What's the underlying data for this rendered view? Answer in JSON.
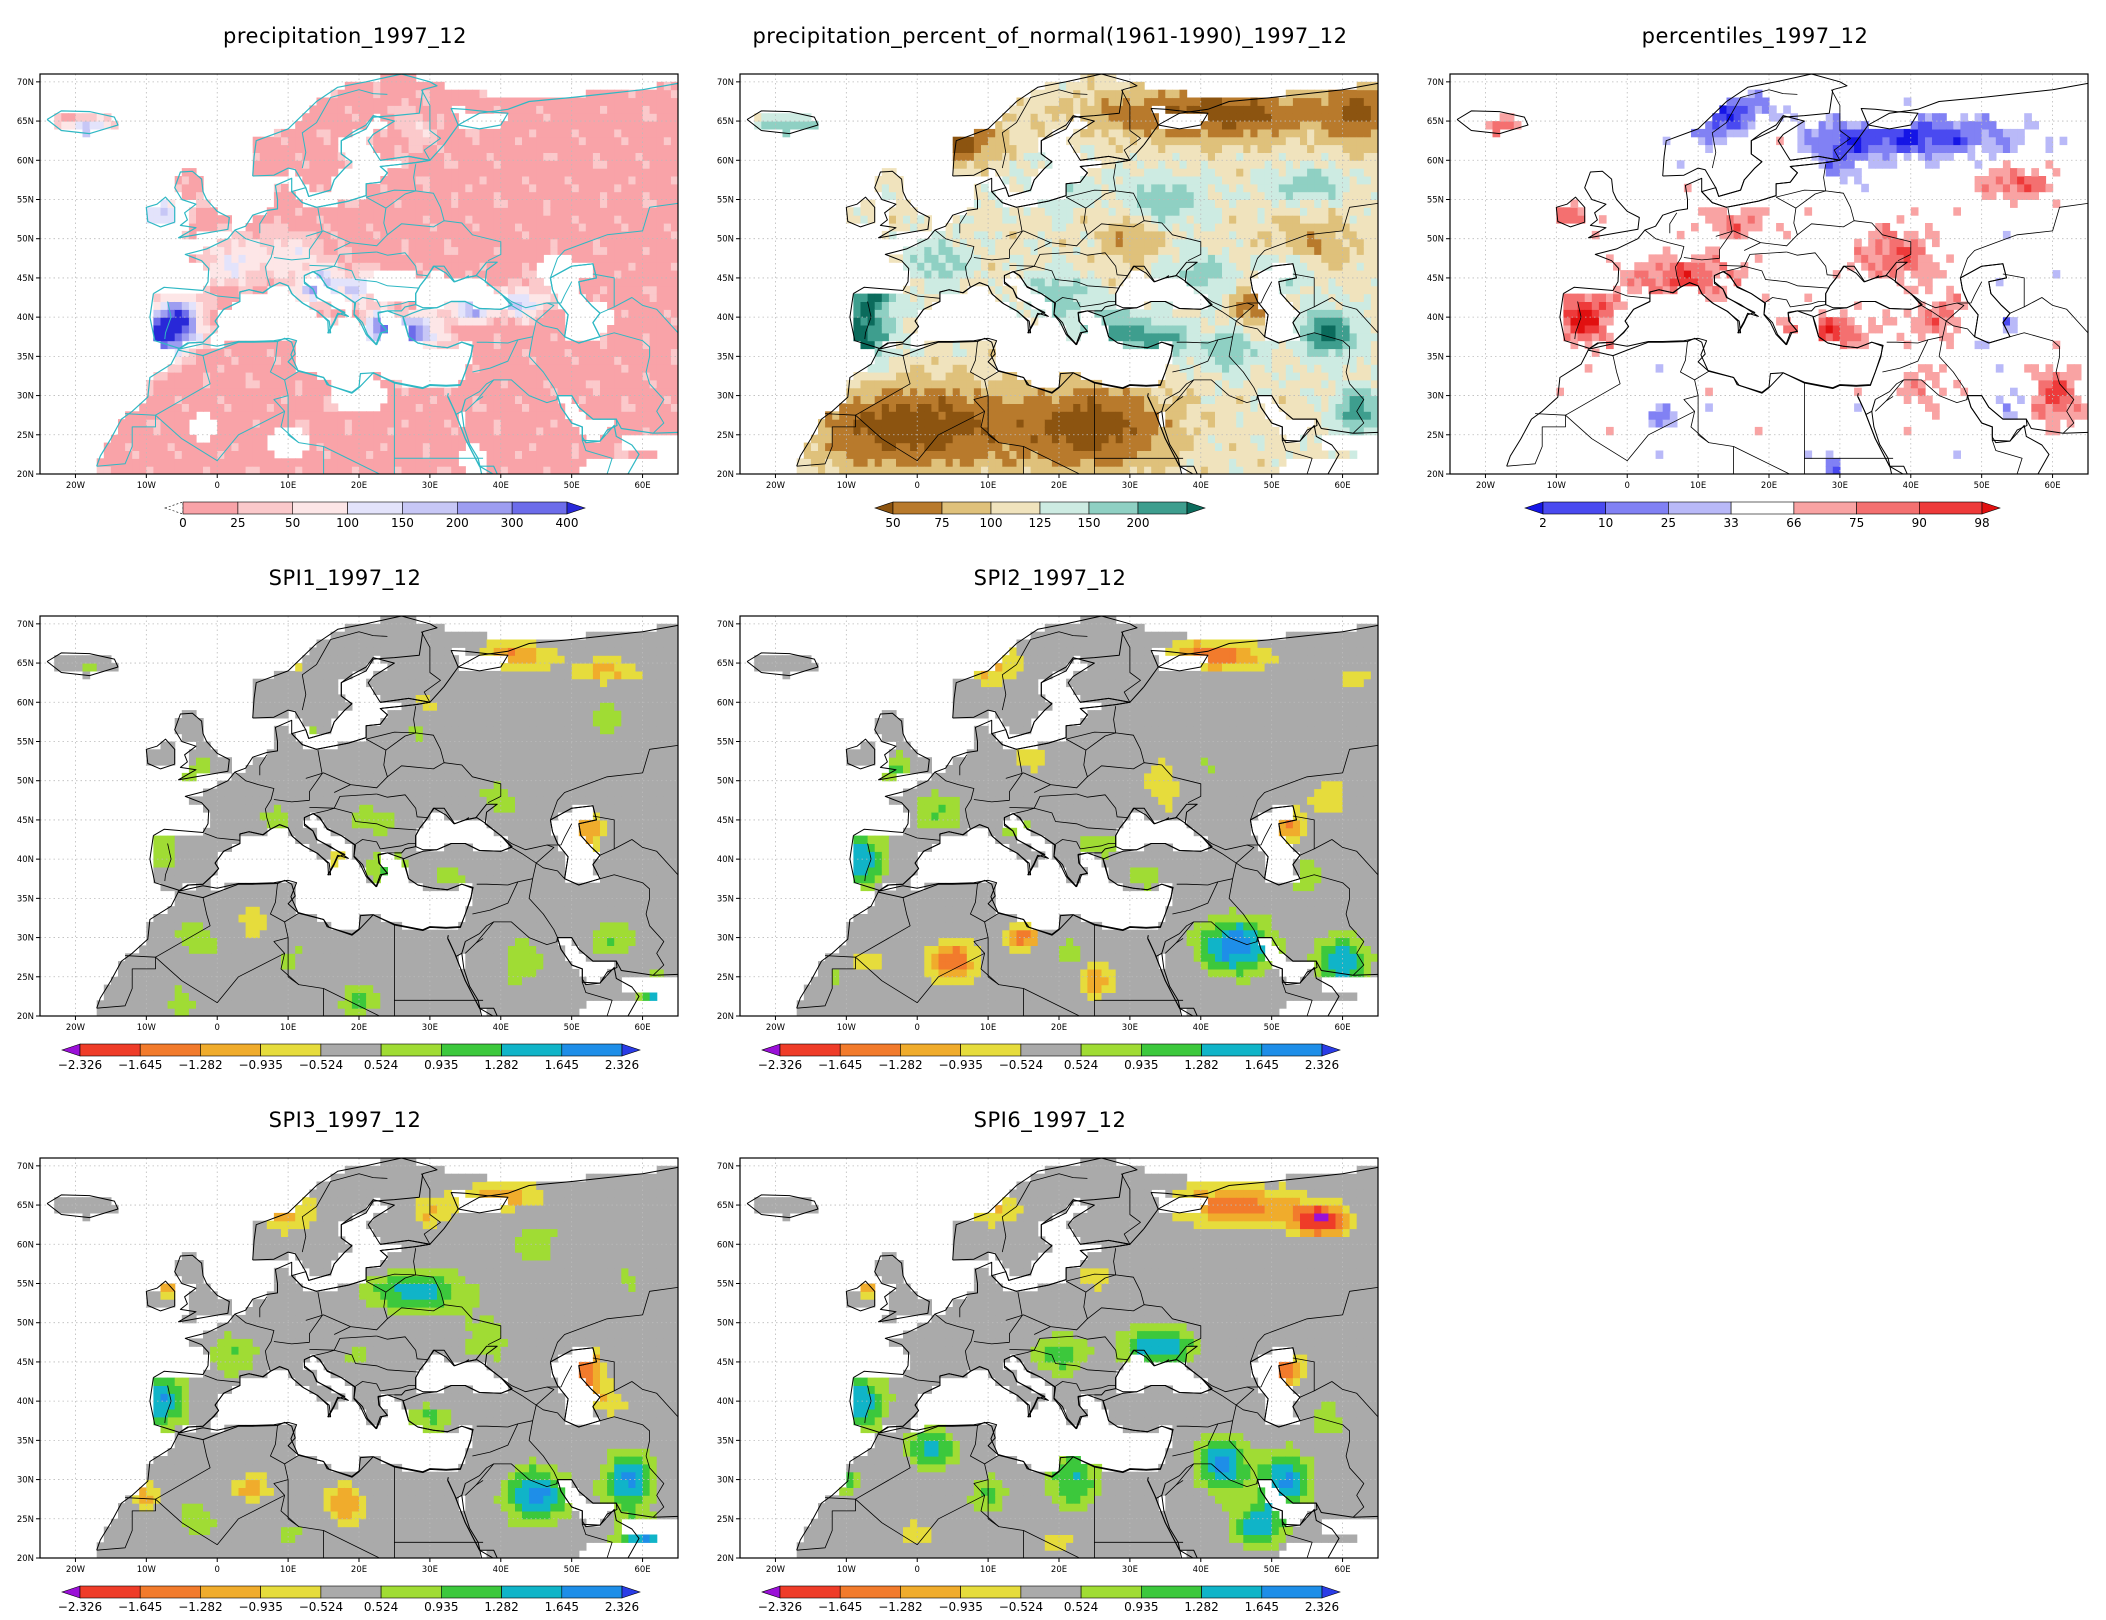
{
  "axes": {
    "lon_ticks": [
      "20W",
      "10W",
      "0",
      "10E",
      "20E",
      "30E",
      "40E",
      "50E",
      "60E"
    ],
    "lat_ticks": [
      "70N",
      "65N",
      "60N",
      "55N",
      "50N",
      "45N",
      "40N",
      "35N",
      "30N",
      "25N",
      "20N"
    ]
  },
  "panels": [
    {
      "id": "precip",
      "title": "precipitation_1997_12",
      "scheme": "precip",
      "colorbar": {
        "labels": [
          "0",
          "25",
          "50",
          "100",
          "150",
          "200",
          "300",
          "400"
        ],
        "colors": [
          "#ffffff",
          "#f9a3a8",
          "#fbc9cb",
          "#fde6e7",
          "#e3e3fb",
          "#c7c7f6",
          "#9d9df1",
          "#6c6cea",
          "#2828d8"
        ]
      }
    },
    {
      "id": "pct_normal",
      "title": "precipitation_percent_of_normal(1961-1990)_1997_12",
      "scheme": "pct",
      "colorbar": {
        "labels": [
          "50",
          "75",
          "100",
          "125",
          "150",
          "200"
        ],
        "colors": [
          "#8c5410",
          "#b87a2c",
          "#dfc17b",
          "#f0e3bd",
          "#cdebe2",
          "#8fd0c3",
          "#3e9e8e",
          "#0b6b5c"
        ]
      }
    },
    {
      "id": "percentiles",
      "title": "percentiles_1997_12",
      "scheme": "perc",
      "colorbar": {
        "labels": [
          "2",
          "10",
          "25",
          "33",
          "66",
          "75",
          "90",
          "98"
        ],
        "colors": [
          "#1515e6",
          "#4a4af0",
          "#8181f4",
          "#b9b9f8",
          "#ffffff",
          "#f9a3a3",
          "#f47070",
          "#ee3a3a",
          "#e11010"
        ]
      }
    },
    {
      "id": "spi1",
      "title": "SPI1_1997_12",
      "scheme": "spi1",
      "colorbar": {
        "labels": [
          "-2.326",
          "-1.645",
          "-1.282",
          "-0.935",
          "-0.524",
          "0.524",
          "0.935",
          "1.282",
          "1.645",
          "2.326"
        ],
        "colors": [
          "#9a10d8",
          "#ef3c28",
          "#f27b2c",
          "#f0ac2c",
          "#e6dc3c",
          "#aaaaaa",
          "#a0dc34",
          "#3cc83c",
          "#10b4c8",
          "#1e8ee8",
          "#2a3ce6"
        ]
      }
    },
    {
      "id": "spi2",
      "title": "SPI2_1997_12",
      "scheme": "spi2",
      "colorbar": {
        "labels": [
          "-2.326",
          "-1.645",
          "-1.282",
          "-0.935",
          "-0.524",
          "0.524",
          "0.935",
          "1.282",
          "1.645",
          "2.326"
        ],
        "colors": [
          "#9a10d8",
          "#ef3c28",
          "#f27b2c",
          "#f0ac2c",
          "#e6dc3c",
          "#aaaaaa",
          "#a0dc34",
          "#3cc83c",
          "#10b4c8",
          "#1e8ee8",
          "#2a3ce6"
        ]
      }
    },
    {
      "id": "spi3",
      "title": "SPI3_1997_12",
      "scheme": "spi3",
      "colorbar": {
        "labels": [
          "-2.326",
          "-1.645",
          "-1.282",
          "-0.935",
          "-0.524",
          "0.524",
          "0.935",
          "1.282",
          "1.645",
          "2.326"
        ],
        "colors": [
          "#9a10d8",
          "#ef3c28",
          "#f27b2c",
          "#f0ac2c",
          "#e6dc3c",
          "#aaaaaa",
          "#a0dc34",
          "#3cc83c",
          "#10b4c8",
          "#1e8ee8",
          "#2a3ce6"
        ]
      }
    },
    {
      "id": "spi6",
      "title": "SPI6_1997_12",
      "scheme": "spi6",
      "colorbar": {
        "labels": [
          "-2.326",
          "-1.645",
          "-1.282",
          "-0.935",
          "-0.524",
          "0.524",
          "0.935",
          "1.282",
          "1.645",
          "2.326"
        ],
        "colors": [
          "#9a10d8",
          "#ef3c28",
          "#f27b2c",
          "#f0ac2c",
          "#e6dc3c",
          "#aaaaaa",
          "#a0dc34",
          "#3cc83c",
          "#10b4c8",
          "#1e8ee8",
          "#2a3ce6"
        ]
      }
    }
  ],
  "colors": {
    "coastline_cyan": "#2fb8c4",
    "coastline_black": "#000000",
    "gridline": "#bbbbbb"
  }
}
